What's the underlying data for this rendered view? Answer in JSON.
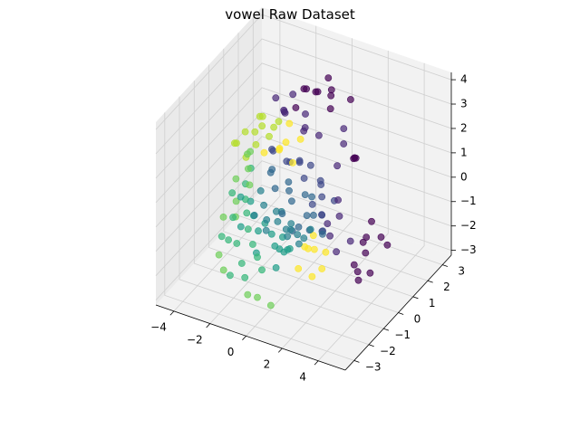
{
  "chart_data": {
    "type": "scatter",
    "projection": "3d",
    "title": "vowel Raw Dataset",
    "xlabel": "",
    "ylabel": "",
    "zlabel": "",
    "xlim": [
      -5,
      5.5
    ],
    "ylim": [
      -3.6,
      3.6
    ],
    "zlim": [
      -3.2,
      4.3
    ],
    "x_ticks": [
      -4,
      -2,
      0,
      2,
      4
    ],
    "y_ticks": [
      -3,
      -2,
      -1,
      0,
      1,
      2,
      3
    ],
    "z_ticks": [
      -3,
      -2,
      -1,
      0,
      1,
      2,
      3,
      4
    ],
    "grid": true,
    "legend": "none",
    "colormap": "viridis",
    "color_range": [
      0,
      10
    ],
    "marker_alpha": 0.7,
    "clusters": [
      {
        "class": 0,
        "color": "#440154",
        "points": [
          [
            -1.2,
            1.8,
            3.1
          ],
          [
            -0.9,
            1.6,
            3.3
          ],
          [
            -0.6,
            2.0,
            3.0
          ],
          [
            -0.3,
            1.5,
            3.4
          ],
          [
            0.0,
            2.2,
            3.1
          ],
          [
            0.3,
            1.8,
            3.2
          ],
          [
            0.6,
            1.4,
            3.0
          ],
          [
            -1.0,
            1.0,
            2.9
          ],
          [
            0.9,
            2.4,
            2.8
          ],
          [
            -0.5,
            2.6,
            3.2
          ],
          [
            3.4,
            0.4,
            -0.9
          ],
          [
            3.6,
            0.1,
            -1.3
          ],
          [
            3.3,
            -0.3,
            -1.6
          ],
          [
            3.7,
            -0.5,
            -2.0
          ],
          [
            3.9,
            -0.8,
            -1.4
          ],
          [
            4.1,
            -0.2,
            -1.8
          ],
          [
            4.3,
            0.3,
            -0.6
          ],
          [
            4.4,
            0.6,
            -1.1
          ],
          [
            2.9,
            0.8,
            -1.5
          ],
          [
            3.2,
            1.0,
            -0.7
          ],
          [
            1.8,
            1.5,
            1.2
          ],
          [
            2.1,
            1.2,
            1.5
          ],
          [
            1.6,
            1.9,
            0.9
          ]
        ]
      },
      {
        "class": 1,
        "color": "#482878",
        "points": [
          [
            -1.8,
            1.2,
            2.4
          ],
          [
            -1.5,
            0.8,
            2.8
          ],
          [
            -2.0,
            1.5,
            2.1
          ],
          [
            -1.2,
            1.9,
            2.0
          ],
          [
            -0.8,
            1.3,
            1.8
          ],
          [
            -0.4,
            0.9,
            2.3
          ],
          [
            0.2,
            1.1,
            2.0
          ],
          [
            0.6,
            2.3,
            1.6
          ],
          [
            1.0,
            1.8,
            1.4
          ],
          [
            1.3,
            1.0,
            1.1
          ],
          [
            2.0,
            0.2,
            0.4
          ],
          [
            2.4,
            -0.2,
            0.1
          ],
          [
            2.2,
            -0.6,
            -0.5
          ],
          [
            2.8,
            -0.9,
            -0.8
          ],
          [
            2.6,
            0.3,
            -1.2
          ],
          [
            1.9,
            -0.4,
            -0.2
          ],
          [
            -2.6,
            1.6,
            2.5
          ],
          [
            -2.3,
            2.4,
            2.2
          ]
        ]
      },
      {
        "class": 2,
        "color": "#3e4989",
        "points": [
          [
            -2.0,
            0.6,
            1.2
          ],
          [
            -1.6,
            0.2,
            1.5
          ],
          [
            -1.1,
            0.5,
            1.0
          ],
          [
            -0.7,
            0.9,
            0.8
          ],
          [
            -0.3,
            0.4,
            1.3
          ],
          [
            0.2,
            0.1,
            0.9
          ],
          [
            0.7,
            0.6,
            0.6
          ],
          [
            1.1,
            0.2,
            0.3
          ],
          [
            1.5,
            -0.3,
            0.0
          ],
          [
            1.8,
            -0.6,
            -0.4
          ],
          [
            0.9,
            -0.2,
            0.2
          ],
          [
            -1.4,
            1.1,
            0.5
          ],
          [
            -0.5,
            1.4,
            0.4
          ],
          [
            0.4,
            1.0,
            0.1
          ],
          [
            1.3,
            0.8,
            -0.2
          ],
          [
            2.0,
            -0.9,
            0.5
          ]
        ]
      },
      {
        "class": 3,
        "color": "#31688e",
        "points": [
          [
            -1.5,
            0.0,
            0.9
          ],
          [
            -1.0,
            -0.4,
            0.5
          ],
          [
            -0.5,
            -0.1,
            0.7
          ],
          [
            0.0,
            -0.5,
            0.3
          ],
          [
            0.5,
            -0.2,
            0.5
          ],
          [
            1.0,
            -0.7,
            0.1
          ],
          [
            1.4,
            -1.0,
            -0.2
          ],
          [
            -0.8,
            0.3,
            0.0
          ],
          [
            0.3,
            0.5,
            -0.1
          ],
          [
            0.8,
            0.0,
            -0.4
          ],
          [
            1.6,
            -0.4,
            -0.6
          ],
          [
            -0.2,
            -0.9,
            0.0
          ],
          [
            0.6,
            -1.2,
            -0.3
          ],
          [
            1.2,
            -1.5,
            0.2
          ],
          [
            -1.9,
            0.4,
            0.4
          ],
          [
            2.2,
            -1.1,
            -0.1
          ]
        ]
      },
      {
        "class": 4,
        "color": "#26828e",
        "points": [
          [
            -1.8,
            -0.4,
            0.2
          ],
          [
            -1.3,
            -0.8,
            0.0
          ],
          [
            -0.9,
            -1.1,
            -0.3
          ],
          [
            -0.4,
            -0.7,
            -0.1
          ],
          [
            0.1,
            -1.0,
            -0.5
          ],
          [
            0.6,
            -1.3,
            -0.2
          ],
          [
            1.0,
            -0.9,
            -0.7
          ],
          [
            -1.1,
            -0.2,
            -0.6
          ],
          [
            -0.2,
            -0.3,
            -0.8
          ],
          [
            0.4,
            -0.6,
            -0.9
          ],
          [
            1.3,
            -1.6,
            -0.4
          ],
          [
            -0.6,
            -1.5,
            -0.4
          ],
          [
            0.9,
            -1.9,
            0.0
          ],
          [
            -1.5,
            -1.2,
            -0.2
          ],
          [
            0.2,
            -1.7,
            0.3
          ],
          [
            1.7,
            -1.3,
            0.1
          ]
        ]
      },
      {
        "class": 5,
        "color": "#1f9e89",
        "points": [
          [
            -2.2,
            -0.6,
            -0.2
          ],
          [
            -1.7,
            -1.0,
            -0.4
          ],
          [
            -1.2,
            -1.3,
            -0.7
          ],
          [
            -0.7,
            -1.0,
            -0.9
          ],
          [
            -0.2,
            -1.4,
            -1.0
          ],
          [
            0.3,
            -1.7,
            -0.8
          ],
          [
            0.8,
            -2.0,
            -0.6
          ],
          [
            -1.4,
            -0.6,
            -0.9
          ],
          [
            -0.5,
            -0.5,
            -1.3
          ],
          [
            0.1,
            -0.9,
            -1.4
          ],
          [
            -2.0,
            -1.5,
            -0.6
          ],
          [
            -0.9,
            -1.8,
            -1.2
          ],
          [
            0.6,
            -2.3,
            -1.1
          ],
          [
            -2.5,
            -0.9,
            0.1
          ],
          [
            1.2,
            -2.1,
            -0.3
          ]
        ]
      },
      {
        "class": 6,
        "color": "#35b779",
        "points": [
          [
            -2.8,
            -0.2,
            0.1
          ],
          [
            -2.4,
            -0.7,
            -0.1
          ],
          [
            -2.0,
            -1.1,
            -0.3
          ],
          [
            -1.6,
            -1.5,
            -0.6
          ],
          [
            -1.1,
            -1.8,
            -0.9
          ],
          [
            -0.6,
            -2.1,
            -1.1
          ],
          [
            -0.1,
            -2.4,
            -1.3
          ],
          [
            -2.6,
            -1.3,
            -0.5
          ],
          [
            -1.9,
            -1.9,
            -1.0
          ],
          [
            -1.3,
            -2.3,
            -1.4
          ],
          [
            -3.0,
            0.4,
            0.3
          ],
          [
            -2.2,
            -2.1,
            -0.8
          ],
          [
            -0.8,
            -2.7,
            -1.6
          ],
          [
            -3.3,
            -0.5,
            -0.2
          ],
          [
            -1.7,
            -2.6,
            -1.8
          ],
          [
            -2.9,
            -1.7,
            -1.1
          ]
        ]
      },
      {
        "class": 7,
        "color": "#6ece58",
        "points": [
          [
            -3.2,
            0.6,
            0.8
          ],
          [
            -2.9,
            0.1,
            0.5
          ],
          [
            -2.5,
            -0.3,
            0.2
          ],
          [
            -3.5,
            0.0,
            0.0
          ],
          [
            -3.0,
            -0.6,
            -0.4
          ],
          [
            -2.7,
            -1.0,
            -0.7
          ],
          [
            -3.6,
            0.9,
            0.4
          ],
          [
            -3.3,
            -1.1,
            -0.8
          ],
          [
            -2.4,
            -2.5,
            -1.2
          ],
          [
            -1.9,
            -2.8,
            -1.5
          ],
          [
            -0.4,
            -3.0,
            -2.0
          ],
          [
            0.3,
            -3.2,
            -1.8
          ],
          [
            0.8,
            -2.9,
            -2.2
          ]
        ]
      },
      {
        "class": 8,
        "color": "#b5de2b",
        "points": [
          [
            -3.4,
            1.5,
            1.6
          ],
          [
            -3.0,
            1.2,
            1.9
          ],
          [
            -2.6,
            1.8,
            1.4
          ],
          [
            -3.8,
            1.0,
            1.2
          ],
          [
            -3.1,
            0.8,
            1.5
          ],
          [
            -2.8,
            1.4,
            1.0
          ],
          [
            -3.6,
            1.9,
            0.9
          ],
          [
            -2.3,
            1.1,
            1.7
          ],
          [
            -3.9,
            0.4,
            1.1
          ],
          [
            -4.2,
            0.9,
            0.7
          ],
          [
            -3.7,
            1.6,
            0.3
          ],
          [
            -4.0,
            1.3,
            -0.1
          ]
        ]
      },
      {
        "class": 9,
        "color": "#fde725",
        "points": [
          [
            -1.6,
            1.3,
            1.9
          ],
          [
            -1.3,
            0.7,
            1.6
          ],
          [
            -0.9,
            1.2,
            1.5
          ],
          [
            -0.6,
            0.3,
            1.2
          ],
          [
            -1.9,
            1.0,
            1.0
          ],
          [
            1.2,
            -0.5,
            -0.8
          ],
          [
            1.5,
            -0.8,
            -1.1
          ],
          [
            1.8,
            -0.4,
            -1.4
          ],
          [
            1.4,
            -1.1,
            -0.9
          ],
          [
            1.1,
            -1.4,
            -1.6
          ],
          [
            1.7,
            -1.2,
            -1.9
          ],
          [
            2.0,
            -0.9,
            -1.7
          ],
          [
            -2.1,
            0.2,
            1.3
          ],
          [
            -1.1,
            0.0,
            1.8
          ],
          [
            0.8,
            -0.6,
            -1.3
          ]
        ]
      }
    ]
  }
}
